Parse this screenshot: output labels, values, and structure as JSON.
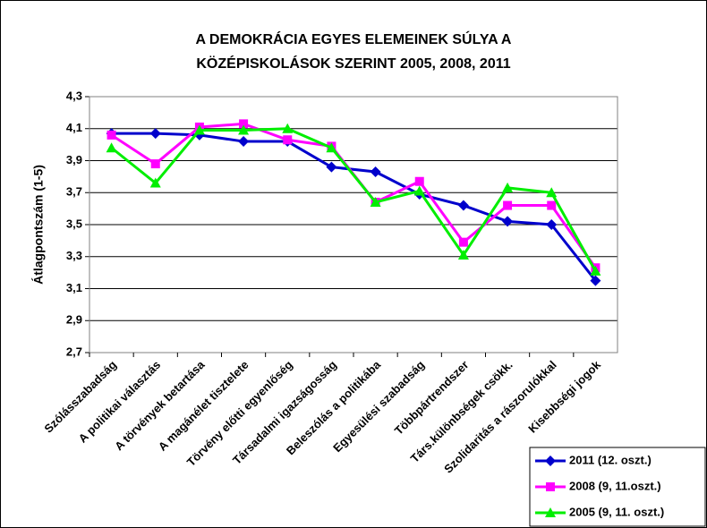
{
  "chart_data": {
    "type": "line",
    "title": [
      "A DEMOKRÁCIA EGYES ELEMEINEK SÚLYA A",
      "KÖZÉPISKOLÁSOK SZERINT 2005, 2008, 2011"
    ],
    "y_label": "Átlagpontszám (1-5)",
    "categories": [
      "Szólásszabadság",
      "A politikai választás",
      "A törvények betartása",
      "A magánélet tisztelete",
      "Törvény előtti egyenlőség",
      "Társadalmi igazságosság",
      "Beleszólás a politikába",
      "Egyesülési szabadság",
      "Többpártrendszer",
      "Társ.különbségek csökk.",
      "Szolidaritás a rászorulókkal",
      "Kisebbségi jogok"
    ],
    "series": [
      {
        "name": "2011 (12. oszt.)",
        "color": "#0000cc",
        "marker": "diamond",
        "values": [
          4.07,
          4.07,
          4.06,
          4.02,
          4.02,
          3.86,
          3.83,
          3.69,
          3.62,
          3.52,
          3.5,
          3.15
        ]
      },
      {
        "name": "2008 (9, 11.oszt.)",
        "color": "#ff00ff",
        "marker": "square",
        "values": [
          4.06,
          3.88,
          4.11,
          4.13,
          4.03,
          3.99,
          3.64,
          3.77,
          3.39,
          3.62,
          3.62,
          3.23
        ]
      },
      {
        "name": "2005 (9, 11. oszt.)",
        "color": "#00ee00",
        "marker": "triangle",
        "values": [
          3.98,
          3.76,
          4.09,
          4.09,
          4.1,
          3.98,
          3.64,
          3.71,
          3.31,
          3.73,
          3.7,
          3.21
        ]
      }
    ],
    "ylim": [
      2.7,
      4.3
    ],
    "yticks": [
      {
        "value": 2.7,
        "label": "2,7"
      },
      {
        "value": 2.9,
        "label": "2,9"
      },
      {
        "value": 3.1,
        "label": "3,1"
      },
      {
        "value": 3.3,
        "label": "3,3"
      },
      {
        "value": 3.5,
        "label": "3,5"
      },
      {
        "value": 3.7,
        "label": "3,7"
      },
      {
        "value": 3.9,
        "label": "3,9"
      },
      {
        "value": 4.1,
        "label": "4,1"
      },
      {
        "value": 4.3,
        "label": "4,3"
      }
    ],
    "grid": true,
    "legend": "bottom-right"
  }
}
